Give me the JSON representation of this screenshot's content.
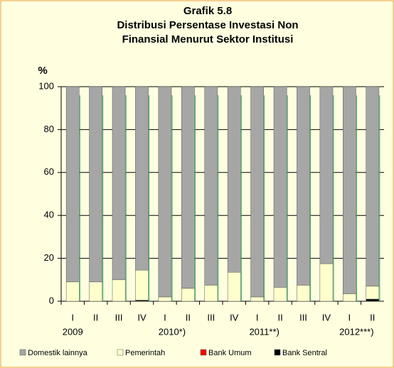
{
  "chart_data": {
    "type": "stacked_bar",
    "title": [
      "Grafik 5.8",
      "Distribusi Persentase Investasi Non",
      "Finansial Menurut Sektor Institusi"
    ],
    "ylabel": "%",
    "categories": [
      "I",
      "II",
      "III",
      "IV",
      "I",
      "II",
      "III",
      "IV",
      "I",
      "II",
      "III",
      "IV",
      "I",
      "II"
    ],
    "years": [
      "2009",
      "2010*)",
      "2011**)",
      "2012***)"
    ],
    "series": [
      {
        "name": "Domestik lainnya",
        "color": "#a6a6a6",
        "values": [
          91,
          91,
          90,
          85.5,
          98,
          94,
          92.5,
          86.5,
          98,
          93.5,
          92.5,
          82.5,
          96.5,
          93
        ]
      },
      {
        "name": "Pemerintah",
        "color": "#ffffcc",
        "values": [
          9,
          9,
          10,
          14,
          2,
          6,
          7.5,
          13.5,
          2,
          6.5,
          7.5,
          17.5,
          3.5,
          6
        ]
      },
      {
        "name": "Bank Umum",
        "color": "#ff0000",
        "values": [
          0,
          0,
          0,
          0,
          0,
          0,
          0,
          0,
          0,
          0,
          0,
          0,
          0,
          0
        ]
      },
      {
        "name": "Bank Sentral",
        "color": "#000000",
        "values": [
          0,
          0,
          0,
          0.5,
          0,
          0,
          0,
          0,
          0,
          0,
          0,
          0,
          0,
          1
        ]
      }
    ],
    "ylim": [
      0,
      100
    ],
    "yticks": [
      0,
      20,
      40,
      60,
      80,
      100
    ],
    "grid": true
  }
}
